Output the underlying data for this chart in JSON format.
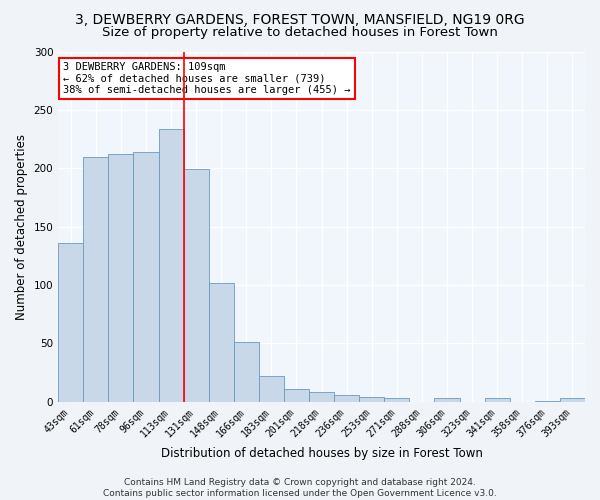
{
  "title1": "3, DEWBERRY GARDENS, FOREST TOWN, MANSFIELD, NG19 0RG",
  "title2": "Size of property relative to detached houses in Forest Town",
  "xlabel": "Distribution of detached houses by size in Forest Town",
  "ylabel": "Number of detached properties",
  "categories": [
    "43sqm",
    "61sqm",
    "78sqm",
    "96sqm",
    "113sqm",
    "131sqm",
    "148sqm",
    "166sqm",
    "183sqm",
    "201sqm",
    "218sqm",
    "236sqm",
    "253sqm",
    "271sqm",
    "288sqm",
    "306sqm",
    "323sqm",
    "341sqm",
    "358sqm",
    "376sqm",
    "393sqm"
  ],
  "values": [
    136,
    210,
    212,
    214,
    234,
    199,
    102,
    51,
    22,
    11,
    8,
    6,
    4,
    3,
    0,
    3,
    0,
    3,
    0,
    1,
    3
  ],
  "bar_color": "#c8d8e8",
  "bar_edge_color": "#6a9abf",
  "vline_index": 4,
  "vline_color": "red",
  "annotation_text": "3 DEWBERRY GARDENS: 109sqm\n← 62% of detached houses are smaller (739)\n38% of semi-detached houses are larger (455) →",
  "annotation_box_color": "white",
  "annotation_box_edge_color": "red",
  "ylim": [
    0,
    300
  ],
  "yticks": [
    0,
    50,
    100,
    150,
    200,
    250,
    300
  ],
  "footnote": "Contains HM Land Registry data © Crown copyright and database right 2024.\nContains public sector information licensed under the Open Government Licence v3.0.",
  "bg_color": "#f0f4f8",
  "plot_bg_color": "#f0f6fc",
  "grid_color": "white",
  "title_fontsize": 10,
  "subtitle_fontsize": 9.5,
  "tick_fontsize": 7,
  "label_fontsize": 8.5,
  "footnote_fontsize": 6.5
}
